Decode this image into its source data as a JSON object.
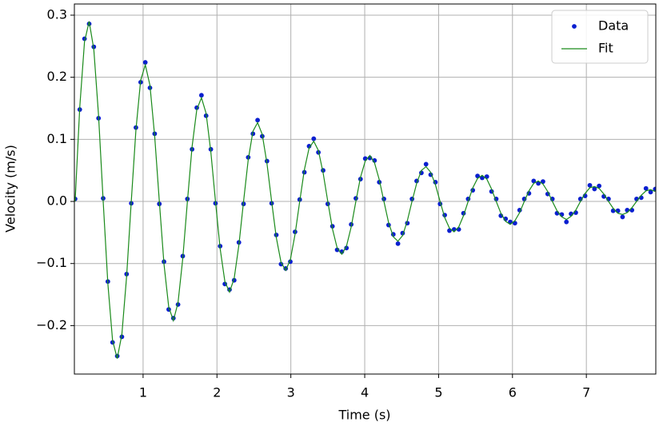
{
  "chart_data": {
    "type": "scatter",
    "xlabel": "Time (s)",
    "ylabel": "Velocity (m/s)",
    "xlim": [
      0.07,
      7.94
    ],
    "ylim": [
      -0.278,
      0.318
    ],
    "xticks": [
      1,
      2,
      3,
      4,
      5,
      6,
      7
    ],
    "yticks": [
      {
        "value": -0.2,
        "label": "−0.2"
      },
      {
        "value": -0.1,
        "label": "−0.1"
      },
      {
        "value": 0,
        "label": "0.0"
      },
      0.1,
      0.2,
      0.3
    ],
    "grid": true,
    "legend": "upper right",
    "x": [
      0.08,
      0.143,
      0.207,
      0.27,
      0.333,
      0.397,
      0.46,
      0.523,
      0.587,
      0.65,
      0.713,
      0.777,
      0.84,
      0.903,
      0.967,
      1.03,
      1.093,
      1.157,
      1.22,
      1.283,
      1.347,
      1.41,
      1.473,
      1.537,
      1.6,
      1.663,
      1.727,
      1.79,
      1.853,
      1.917,
      1.98,
      2.043,
      2.107,
      2.17,
      2.233,
      2.297,
      2.36,
      2.423,
      2.487,
      2.55,
      2.613,
      2.677,
      2.74,
      2.803,
      2.867,
      2.93,
      2.993,
      3.057,
      3.12,
      3.183,
      3.247,
      3.31,
      3.373,
      3.437,
      3.5,
      3.563,
      3.627,
      3.69,
      3.753,
      3.817,
      3.88,
      3.943,
      4.007,
      4.07,
      4.133,
      4.197,
      4.26,
      4.323,
      4.387,
      4.45,
      4.513,
      4.577,
      4.64,
      4.703,
      4.767,
      4.83,
      4.893,
      4.957,
      5.02,
      5.083,
      5.147,
      5.21,
      5.273,
      5.337,
      5.4,
      5.463,
      5.527,
      5.59,
      5.653,
      5.717,
      5.78,
      5.843,
      5.907,
      5.97,
      6.033,
      6.097,
      6.16,
      6.223,
      6.287,
      6.35,
      6.413,
      6.477,
      6.54,
      6.603,
      6.667,
      6.73,
      6.793,
      6.857,
      6.92,
      6.983,
      7.047,
      7.11,
      7.173,
      7.237,
      7.3,
      7.363,
      7.427,
      7.49,
      7.553,
      7.617,
      7.68,
      7.743,
      7.807,
      7.87,
      7.933
    ],
    "series": [
      {
        "name": "Data",
        "type": "scatter",
        "color": "#0a1fd0",
        "values": [
          0.004,
          0.148,
          0.262,
          0.286,
          0.249,
          0.134,
          0.005,
          -0.129,
          -0.227,
          -0.249,
          -0.218,
          -0.117,
          -0.003,
          0.119,
          0.192,
          0.224,
          0.183,
          0.109,
          -0.004,
          -0.097,
          -0.174,
          -0.188,
          -0.166,
          -0.088,
          0.004,
          0.084,
          0.151,
          0.171,
          0.138,
          0.084,
          -0.003,
          -0.072,
          -0.133,
          -0.142,
          -0.127,
          -0.066,
          -0.004,
          0.071,
          0.109,
          0.131,
          0.105,
          0.065,
          -0.003,
          -0.054,
          -0.101,
          -0.108,
          -0.097,
          -0.049,
          0.003,
          0.047,
          0.089,
          0.101,
          0.079,
          0.05,
          -0.004,
          -0.04,
          -0.078,
          -0.081,
          -0.075,
          -0.037,
          0.005,
          0.036,
          0.069,
          0.07,
          0.066,
          0.031,
          0.004,
          -0.038,
          -0.053,
          -0.068,
          -0.051,
          -0.035,
          0.004,
          0.033,
          0.046,
          0.06,
          0.043,
          0.031,
          -0.004,
          -0.022,
          -0.047,
          -0.045,
          -0.045,
          -0.019,
          0.004,
          0.018,
          0.041,
          0.038,
          0.04,
          0.016,
          0.004,
          -0.023,
          -0.028,
          -0.033,
          -0.035,
          -0.014,
          0.004,
          0.013,
          0.033,
          0.029,
          0.032,
          0.012,
          0.004,
          -0.019,
          -0.021,
          -0.033,
          -0.02,
          -0.018,
          0.004,
          0.009,
          0.026,
          0.02,
          0.025,
          0.008,
          0.004,
          -0.015,
          -0.015,
          -0.025,
          -0.014,
          -0.014,
          0.004,
          0.006,
          0.021,
          0.015,
          0.02
        ]
      },
      {
        "name": "Fit",
        "type": "line",
        "color": "#1a8a1a",
        "values": [
          0,
          0.152,
          0.257,
          0.29,
          0.245,
          0.139,
          0,
          -0.132,
          -0.224,
          -0.253,
          -0.214,
          -0.121,
          0,
          0.115,
          0.195,
          0.22,
          0.187,
          0.105,
          0,
          -0.101,
          -0.17,
          -0.192,
          -0.163,
          -0.092,
          0,
          0.088,
          0.148,
          0.167,
          0.142,
          0.08,
          0,
          -0.076,
          -0.129,
          -0.146,
          -0.124,
          -0.07,
          0,
          0.067,
          0.113,
          0.127,
          0.108,
          0.061,
          0,
          -0.058,
          -0.098,
          -0.111,
          -0.094,
          -0.053,
          0,
          0.051,
          0.086,
          0.097,
          0.082,
          0.046,
          0,
          -0.044,
          -0.075,
          -0.085,
          -0.072,
          -0.041,
          0,
          0.039,
          0.065,
          0.074,
          0.062,
          0.035,
          0,
          -0.034,
          -0.057,
          -0.064,
          -0.055,
          -0.031,
          0,
          0.029,
          0.05,
          0.056,
          0.047,
          0.027,
          0,
          -0.026,
          -0.043,
          -0.049,
          -0.041,
          -0.023,
          0,
          0.022,
          0.037,
          0.042,
          0.036,
          0.02,
          0,
          -0.019,
          -0.032,
          -0.037,
          -0.031,
          -0.018,
          0,
          0.017,
          0.029,
          0.033,
          0.028,
          0.016,
          0,
          -0.015,
          -0.025,
          -0.029,
          -0.024,
          -0.014,
          0,
          0.013,
          0.022,
          0.024,
          0.021,
          0.012,
          0,
          -0.011,
          -0.019,
          -0.021,
          -0.018,
          -0.01,
          0,
          0.01,
          0.017,
          0.019,
          0.016
        ]
      }
    ]
  }
}
